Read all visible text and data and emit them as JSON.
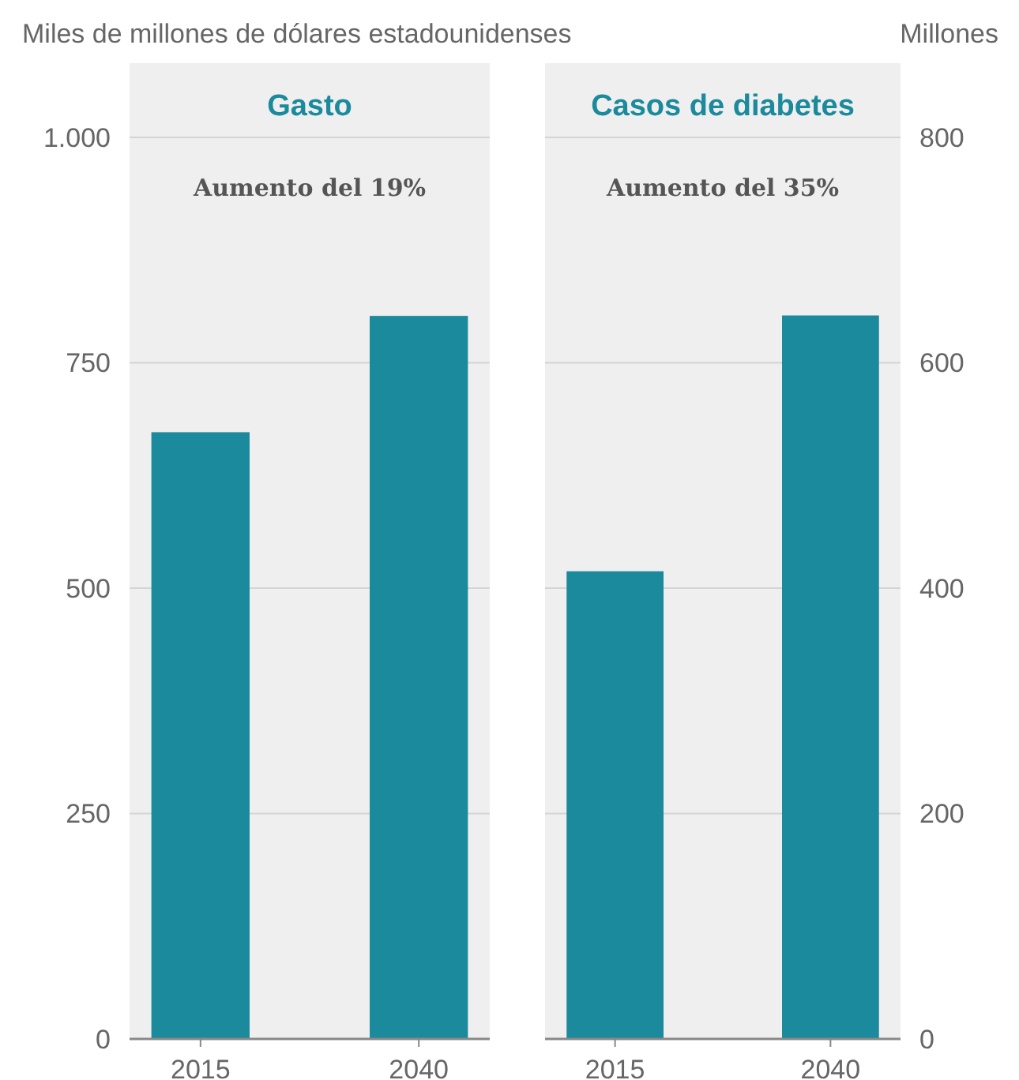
{
  "chart_data": [
    {
      "type": "bar",
      "title": "Gasto",
      "subtitle": "Aumento del 19%",
      "ylabel": "Miles de millones de dólares estadounidenses",
      "categories": [
        "2015",
        "2040"
      ],
      "values": [
        673,
        802
      ],
      "color": "#1b8a9c",
      "ylim": [
        0,
        1000
      ],
      "yticks": [
        0,
        250,
        500,
        750,
        {
          "value": 1000,
          "label": "1.000"
        }
      ],
      "grid": "y"
    },
    {
      "type": "bar",
      "title": "Casos de diabetes",
      "subtitle": "Aumento del 35%",
      "ylabel": "Millones",
      "categories": [
        "2015",
        "2040"
      ],
      "values": [
        415,
        642
      ],
      "color": "#1b8a9c",
      "ylim": [
        0,
        800
      ],
      "yticks": [
        0,
        200,
        400,
        600,
        800
      ],
      "grid": "y"
    }
  ]
}
